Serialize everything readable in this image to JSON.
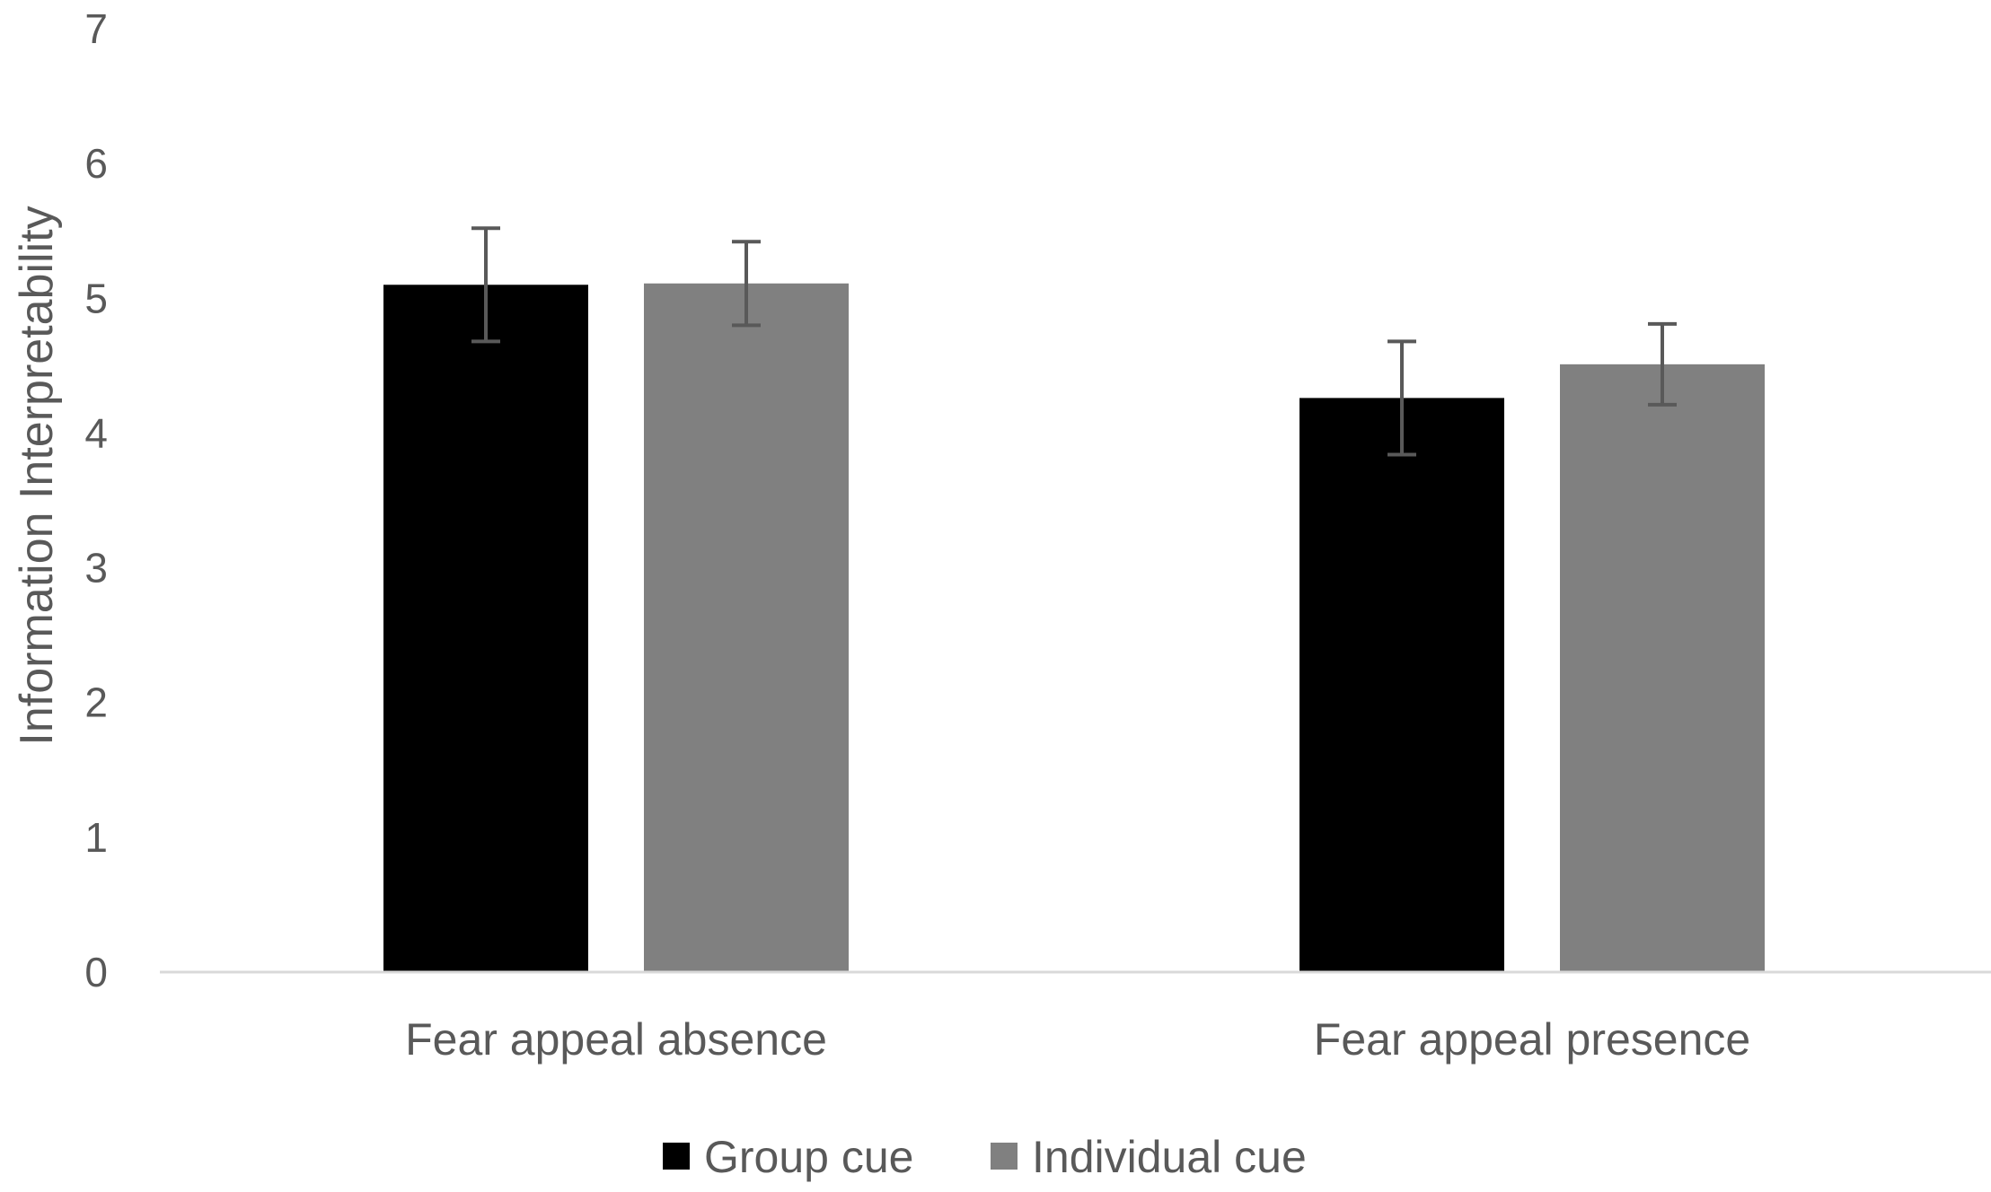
{
  "chart_data": {
    "type": "bar",
    "title": "",
    "xlabel": "",
    "ylabel": "Information Interpretability",
    "ylim": [
      0,
      7
    ],
    "yticks": [
      0,
      1,
      2,
      3,
      4,
      5,
      6,
      7
    ],
    "grid": false,
    "legend_position": "bottom",
    "categories": [
      "Fear appeal absence",
      "Fear appeal presence"
    ],
    "series": [
      {
        "name": "Group cue",
        "color": "#000000",
        "values": [
          5.1,
          4.26
        ],
        "error": [
          0.42,
          0.42
        ]
      },
      {
        "name": "Individual cue",
        "color": "#808080",
        "values": [
          5.11,
          4.51
        ],
        "error": [
          0.31,
          0.3
        ]
      }
    ],
    "axis_color": "#d9d9d9",
    "errorbar_color": "#595959"
  }
}
